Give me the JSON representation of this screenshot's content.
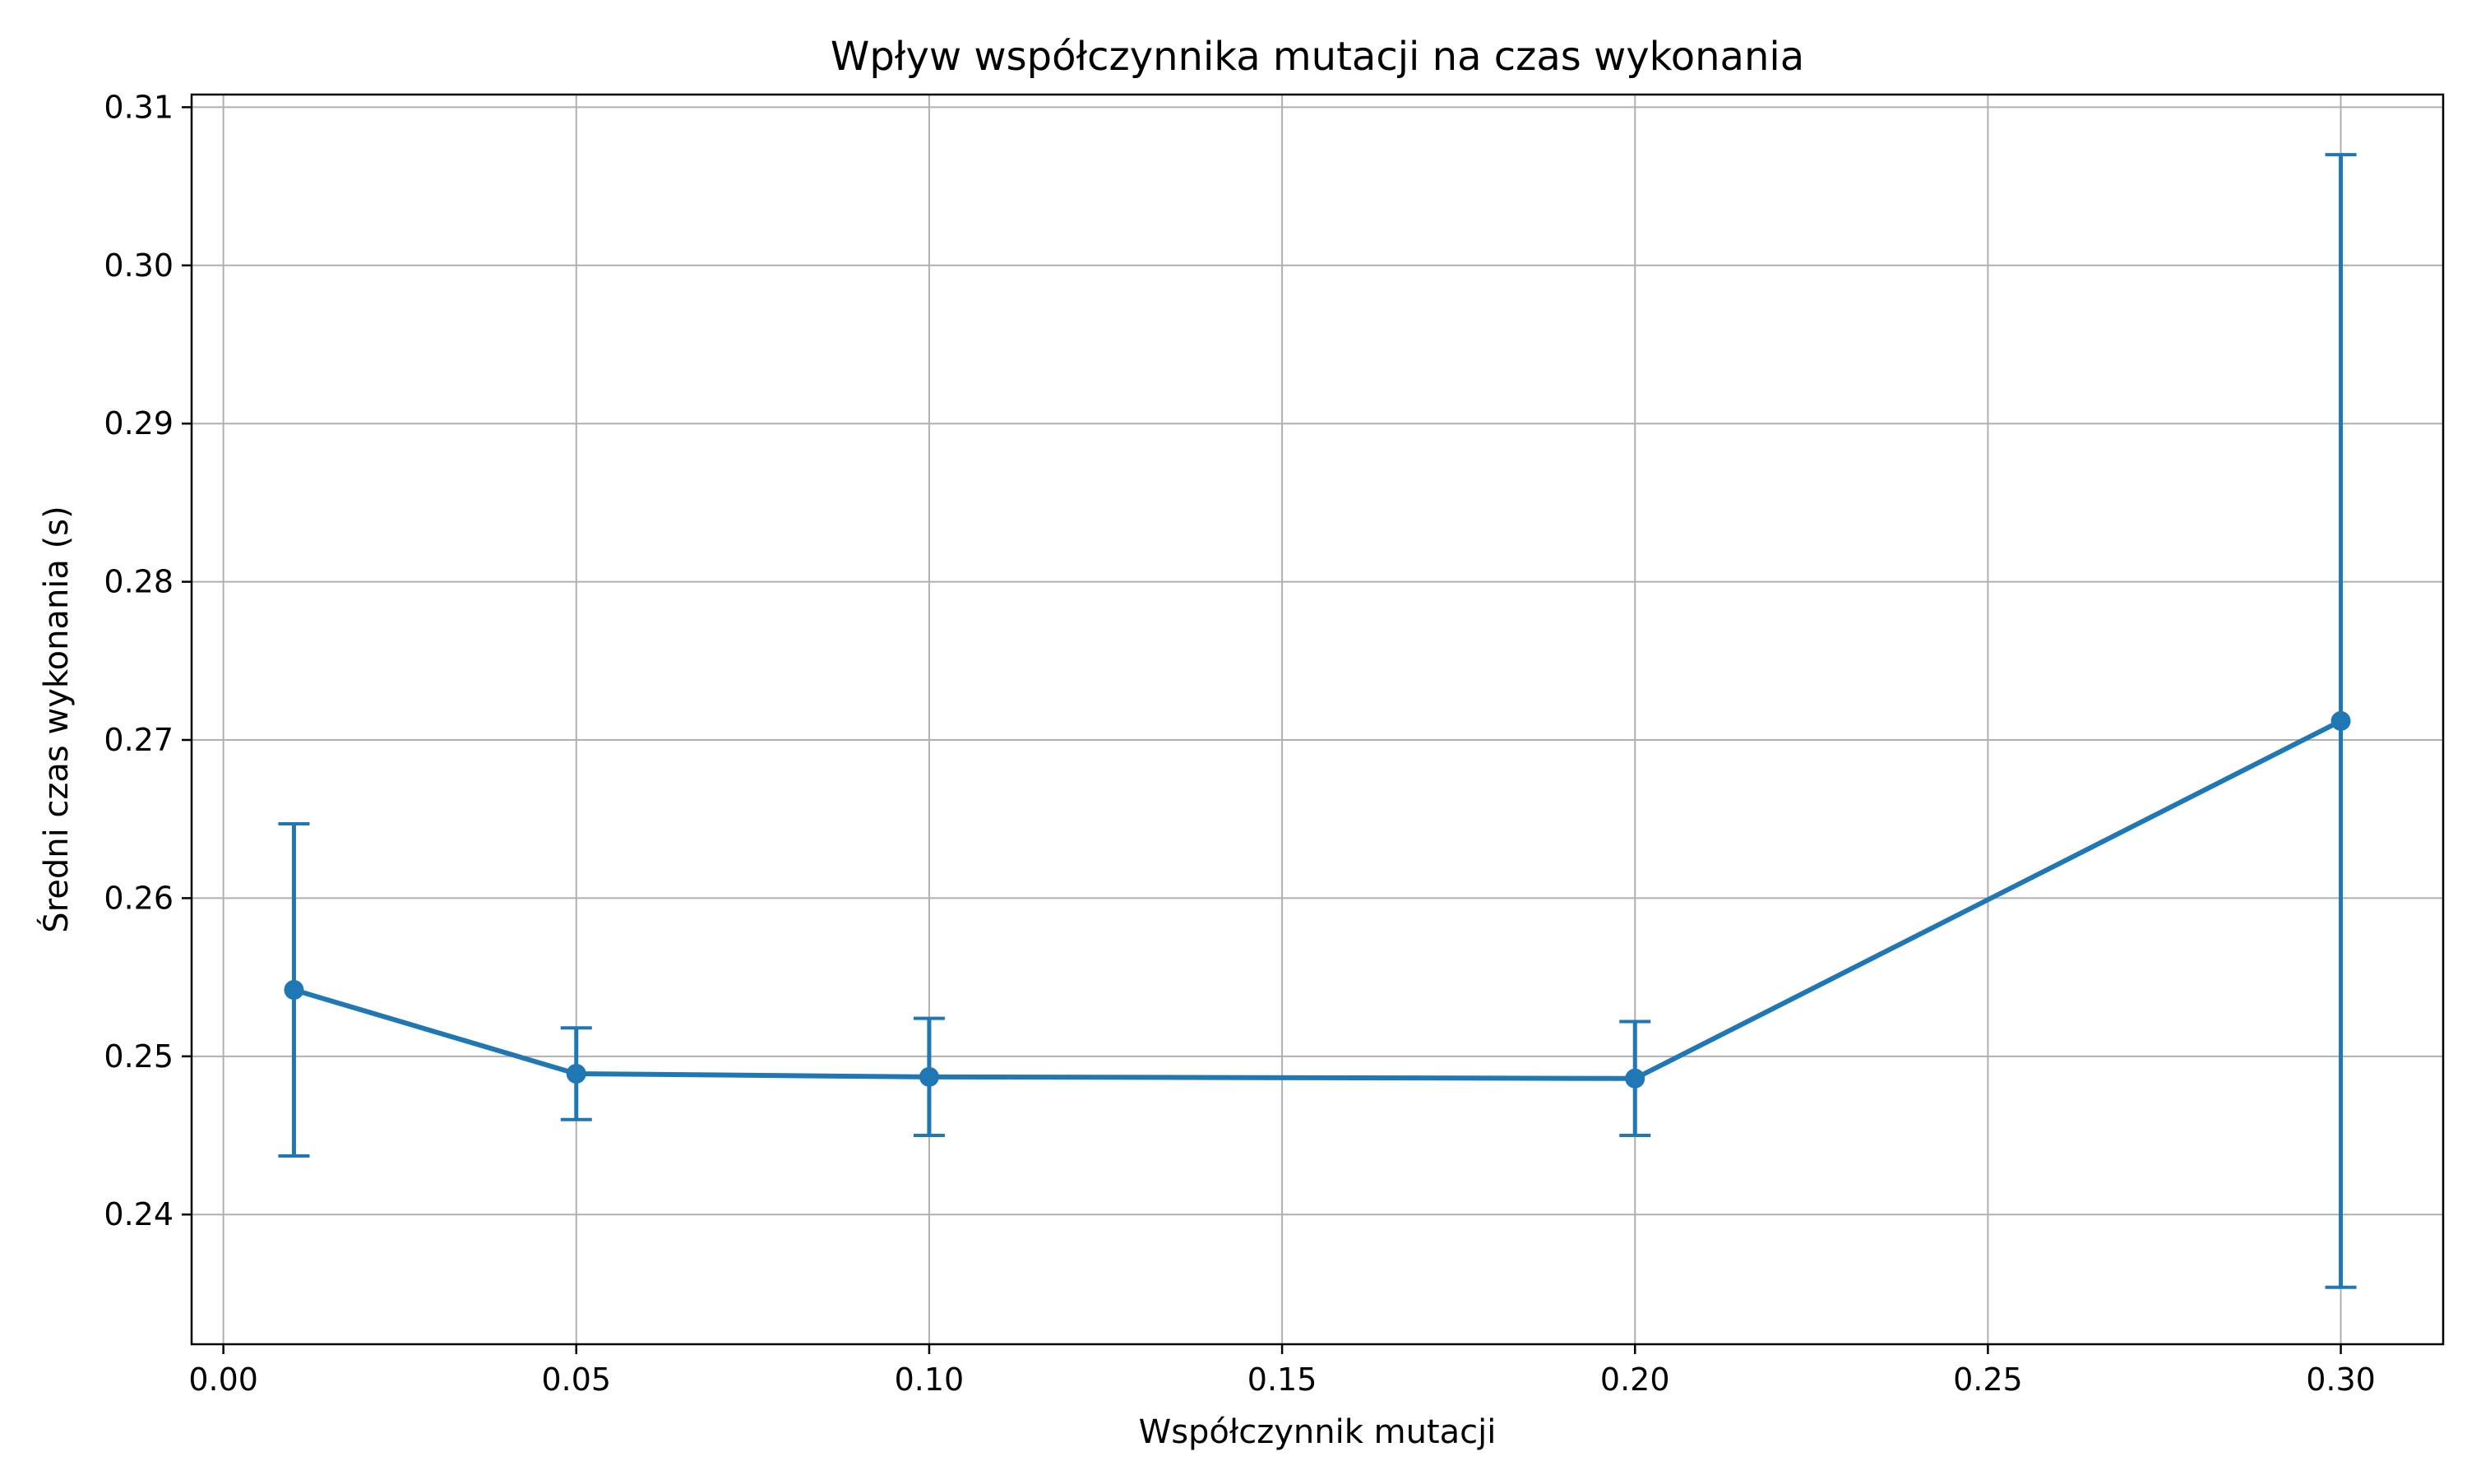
{
  "chart_data": {
    "type": "line",
    "title": "Wpływ współczynnika mutacji na czas wykonania",
    "xlabel": "Współczynnik mutacji",
    "ylabel": "Średni czas wykonania (s)",
    "xlim": [
      -0.0045,
      0.3145
    ],
    "ylim": [
      0.2318,
      0.3108
    ],
    "xticks": [
      0.0,
      0.05,
      0.1,
      0.15,
      0.2,
      0.25,
      0.3
    ],
    "xtick_labels": [
      "0.00",
      "0.05",
      "0.10",
      "0.15",
      "0.20",
      "0.25",
      "0.30"
    ],
    "yticks": [
      0.24,
      0.25,
      0.26,
      0.27,
      0.28,
      0.29,
      0.3,
      0.31
    ],
    "ytick_labels": [
      "0.24",
      "0.25",
      "0.26",
      "0.27",
      "0.28",
      "0.29",
      "0.30",
      "0.31"
    ],
    "grid": true,
    "x": [
      0.01,
      0.05,
      0.1,
      0.2,
      0.3
    ],
    "y": [
      0.2542,
      0.2489,
      0.2487,
      0.2486,
      0.2712
    ],
    "error": [
      0.0105,
      0.0029,
      0.0037,
      0.0036,
      0.0358
    ],
    "color": "#1f77b4"
  }
}
